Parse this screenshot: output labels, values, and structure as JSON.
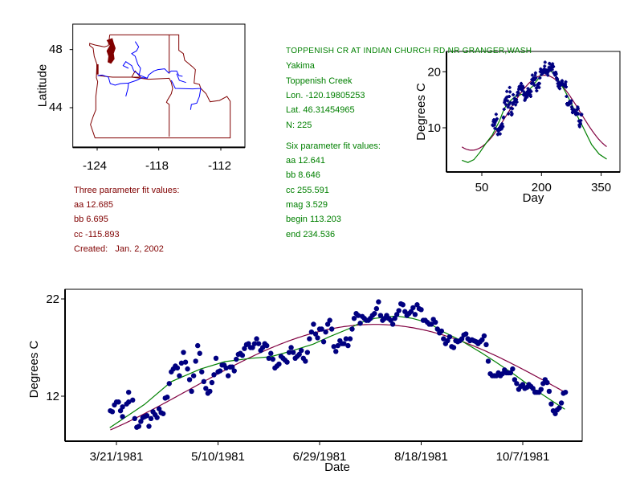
{
  "station": {
    "title": "TOPPENISH CR AT INDIAN CHURCH RD NR GRANGER,WASH",
    "basin": "Yakima",
    "stream": "Toppenish Creek",
    "lon": "Lon. -120.19805253",
    "lat": "Lat. 46.31454965",
    "n": "N: 225"
  },
  "six_fit": {
    "heading": "Six parameter fit values:",
    "aa": "aa 12.641",
    "bb": "bb 8.646",
    "cc": "cc 255.591",
    "mag": "mag 3.529",
    "begin": "begin 113.203",
    "end": "end 234.536"
  },
  "three_fit": {
    "heading": "Three parameter fit values:",
    "aa": "aa 12.685",
    "bb": "bb 6.695",
    "cc": "cc -115.893",
    "created": "Created:   Jan. 2, 2002"
  },
  "colors": {
    "points": "#000080",
    "three_fit": "#800040",
    "six_fit": "#008000",
    "border": "#800000",
    "river": "#0000ff"
  },
  "chart_data": [
    {
      "type": "map",
      "name": "location map",
      "xlabel": "",
      "ylabel": "Latitude",
      "xticks": [
        "-124",
        "-118",
        "-112"
      ],
      "yticks": [
        "48",
        "44"
      ]
    },
    {
      "type": "scatter",
      "name": "seasonal plot",
      "xlabel": "Day",
      "ylabel": "Degrees C",
      "xticks": [
        {
          "v": 50,
          "label": "50"
        },
        {
          "v": 200,
          "label": "200"
        },
        {
          "v": 350,
          "label": "350"
        }
      ],
      "yticks": [
        {
          "v": 10,
          "label": "10"
        },
        {
          "v": 20,
          "label": "20"
        }
      ],
      "xlim": [
        0,
        365
      ],
      "ylim": [
        2.1,
        23.6
      ]
    },
    {
      "type": "scatter",
      "name": "time series plot",
      "xlabel": "Date",
      "ylabel": "Degrees C",
      "x_unit": "day of year 1981",
      "xticks": [
        {
          "v": 80,
          "label": "3/21/1981"
        },
        {
          "v": 130,
          "label": "5/10/1981"
        },
        {
          "v": 180,
          "label": "6/29/1981"
        },
        {
          "v": 230,
          "label": "8/18/1981"
        },
        {
          "v": 280,
          "label": "10/7/1981"
        }
      ],
      "yticks": [
        {
          "v": 12,
          "label": "12"
        },
        {
          "v": 22,
          "label": "22"
        }
      ],
      "xlim": [
        54,
        309
      ],
      "ylim": [
        7.4,
        22.9
      ]
    }
  ],
  "series": {
    "observations": [
      [
        77,
        10.5
      ],
      [
        78,
        10.4
      ],
      [
        79,
        11.1
      ],
      [
        80,
        11.4
      ],
      [
        81,
        11.4
      ],
      [
        82,
        10.5
      ],
      [
        83,
        9.9
      ],
      [
        83,
        10.9
      ],
      [
        85,
        11.2
      ],
      [
        86,
        11.4
      ],
      [
        86,
        12.4
      ],
      [
        88,
        11.6
      ],
      [
        89,
        9.7
      ],
      [
        90,
        8.8
      ],
      [
        91,
        8.9
      ],
      [
        92,
        9.4
      ],
      [
        93,
        9.8
      ],
      [
        94,
        9.9
      ],
      [
        95,
        10.0
      ],
      [
        96,
        8.9
      ],
      [
        97,
        9.7
      ],
      [
        98,
        10.4
      ],
      [
        99,
        10.1
      ],
      [
        100,
        9.8
      ],
      [
        101,
        10.7
      ],
      [
        102,
        10.3
      ],
      [
        103,
        10.2
      ],
      [
        104,
        11.8
      ],
      [
        105,
        11.9
      ],
      [
        106,
        13.3
      ],
      [
        107,
        14.5
      ],
      [
        108,
        14.8
      ],
      [
        109,
        15.1
      ],
      [
        110,
        14.9
      ],
      [
        111,
        14.1
      ],
      [
        112,
        15.4
      ],
      [
        113,
        16.5
      ],
      [
        114,
        15.5
      ],
      [
        115,
        14.8
      ],
      [
        116,
        13.7
      ],
      [
        117,
        12.5
      ],
      [
        118,
        14.1
      ],
      [
        119,
        15.6
      ],
      [
        120,
        17.2
      ],
      [
        121,
        16.4
      ],
      [
        122,
        14.5
      ],
      [
        123,
        13.5
      ],
      [
        124,
        12.8
      ],
      [
        125,
        12.3
      ],
      [
        126,
        12.5
      ],
      [
        127,
        13.4
      ],
      [
        128,
        14.2
      ],
      [
        129,
        15.9
      ],
      [
        130,
        14.5
      ],
      [
        131,
        14.6
      ],
      [
        132,
        15.2
      ],
      [
        133,
        15.2
      ],
      [
        134,
        14.9
      ],
      [
        135,
        14.1
      ],
      [
        136,
        15.0
      ],
      [
        137,
        15.0
      ],
      [
        138,
        14.6
      ],
      [
        139,
        15.8
      ],
      [
        140,
        16.3
      ],
      [
        141,
        16.4
      ],
      [
        142,
        16.2
      ],
      [
        143,
        16.9
      ],
      [
        144,
        17.3
      ],
      [
        145,
        17.4
      ],
      [
        146,
        17.0
      ],
      [
        147,
        17.0
      ],
      [
        148,
        17.4
      ],
      [
        149,
        17.9
      ],
      [
        150,
        17.4
      ],
      [
        151,
        16.7
      ],
      [
        152,
        17.0
      ],
      [
        153,
        17.4
      ],
      [
        154,
        17.2
      ],
      [
        155,
        15.9
      ],
      [
        156,
        16.4
      ],
      [
        157,
        15.8
      ],
      [
        158,
        14.9
      ],
      [
        159,
        15.1
      ],
      [
        160,
        15.3
      ],
      [
        161,
        16.1
      ],
      [
        162,
        15.9
      ],
      [
        163,
        15.7
      ],
      [
        164,
        15.5
      ],
      [
        165,
        16.5
      ],
      [
        166,
        17.0
      ],
      [
        167,
        16.5
      ],
      [
        168,
        15.9
      ],
      [
        169,
        16.1
      ],
      [
        170,
        16.3
      ],
      [
        171,
        16.7
      ],
      [
        172,
        15.9
      ],
      [
        173,
        15.6
      ],
      [
        174,
        16.5
      ],
      [
        175,
        17.9
      ],
      [
        176,
        18.6
      ],
      [
        177,
        19.4
      ],
      [
        178,
        18.4
      ],
      [
        179,
        18.0
      ],
      [
        180,
        18.9
      ],
      [
        181,
        18.9
      ],
      [
        182,
        17.6
      ],
      [
        183,
        18.6
      ],
      [
        184,
        19.4
      ],
      [
        185,
        19.8
      ],
      [
        186,
        18.9
      ],
      [
        187,
        17.1
      ],
      [
        188,
        16.6
      ],
      [
        189,
        17.2
      ],
      [
        190,
        17.7
      ],
      [
        191,
        17.4
      ],
      [
        192,
        17.4
      ],
      [
        193,
        17.9
      ],
      [
        194,
        17.2
      ],
      [
        195,
        17.9
      ],
      [
        196,
        18.9
      ],
      [
        197,
        20.0
      ],
      [
        198,
        20.5
      ],
      [
        199,
        20.3
      ],
      [
        200,
        19.5
      ],
      [
        201,
        20.2
      ],
      [
        202,
        20.0
      ],
      [
        203,
        19.8
      ],
      [
        204,
        19.8
      ],
      [
        205,
        20.0
      ],
      [
        206,
        20.3
      ],
      [
        207,
        20.5
      ],
      [
        208,
        21.0
      ],
      [
        209,
        21.7
      ],
      [
        210,
        20.3
      ],
      [
        211,
        19.8
      ],
      [
        212,
        20.0
      ],
      [
        213,
        20.3
      ],
      [
        214,
        20.0
      ],
      [
        215,
        19.8
      ],
      [
        216,
        19.4
      ],
      [
        217,
        20.0
      ],
      [
        218,
        20.4
      ],
      [
        219,
        20.8
      ],
      [
        220,
        21.5
      ],
      [
        221,
        21.4
      ],
      [
        222,
        20.7
      ],
      [
        223,
        20.3
      ],
      [
        224,
        20.5
      ],
      [
        225,
        20.7
      ],
      [
        226,
        21.1
      ],
      [
        227,
        20.4
      ],
      [
        228,
        21.4
      ],
      [
        229,
        21.0
      ],
      [
        230,
        20.9
      ],
      [
        231,
        19.8
      ],
      [
        232,
        19.8
      ],
      [
        233,
        19.6
      ],
      [
        234,
        19.4
      ],
      [
        235,
        19.4
      ],
      [
        236,
        19.9
      ],
      [
        237,
        19.6
      ],
      [
        238,
        18.9
      ],
      [
        239,
        18.5
      ],
      [
        240,
        18.7
      ],
      [
        241,
        17.9
      ],
      [
        242,
        17.4
      ],
      [
        243,
        17.7
      ],
      [
        244,
        18.1
      ],
      [
        245,
        17.1
      ],
      [
        246,
        17.0
      ],
      [
        247,
        17.7
      ],
      [
        248,
        17.6
      ],
      [
        249,
        17.7
      ],
      [
        250,
        17.9
      ],
      [
        251,
        18.3
      ],
      [
        252,
        18.4
      ],
      [
        253,
        17.9
      ],
      [
        254,
        17.7
      ],
      [
        255,
        17.8
      ],
      [
        256,
        17.7
      ],
      [
        257,
        17.6
      ],
      [
        258,
        17.4
      ],
      [
        259,
        17.6
      ],
      [
        260,
        17.8
      ],
      [
        261,
        18.2
      ],
      [
        262,
        17.3
      ],
      [
        263,
        15.6
      ],
      [
        264,
        14.3
      ],
      [
        265,
        14.1
      ],
      [
        266,
        14.1
      ],
      [
        267,
        14.1
      ],
      [
        268,
        14.4
      ],
      [
        269,
        14.1
      ],
      [
        270,
        14.3
      ],
      [
        271,
        14.7
      ],
      [
        272,
        14.4
      ],
      [
        273,
        14.4
      ],
      [
        274,
        14.4
      ],
      [
        275,
        14.8
      ],
      [
        276,
        13.7
      ],
      [
        277,
        13.3
      ],
      [
        278,
        12.7
      ],
      [
        279,
        13.0
      ],
      [
        280,
        13.2
      ],
      [
        281,
        12.8
      ],
      [
        282,
        12.9
      ],
      [
        283,
        13.2
      ],
      [
        284,
        13.0
      ],
      [
        285,
        12.8
      ],
      [
        286,
        12.4
      ],
      [
        287,
        12.4
      ],
      [
        288,
        12.4
      ],
      [
        289,
        12.7
      ],
      [
        290,
        13.3
      ],
      [
        291,
        13.7
      ],
      [
        292,
        13.4
      ],
      [
        293,
        12.5
      ],
      [
        294,
        11.2
      ],
      [
        295,
        10.5
      ],
      [
        296,
        10.2
      ],
      [
        297,
        10.6
      ],
      [
        298,
        10.8
      ],
      [
        299,
        11.3
      ],
      [
        300,
        12.3
      ],
      [
        301,
        12.4
      ]
    ],
    "three_param_fit": {
      "aa": 12.685,
      "bb": 6.695,
      "cc": -115.893,
      "formula": "aa + bb*sin(2*pi*(day+cc)/365)"
    },
    "six_param_fit_curve": [
      [
        0,
        4.2
      ],
      [
        15,
        3.8
      ],
      [
        30,
        4.3
      ],
      [
        45,
        5.6
      ],
      [
        60,
        7.2
      ],
      [
        76.7,
        8.75
      ],
      [
        93.8,
        11.15
      ],
      [
        107,
        13.5
      ],
      [
        121.5,
        14.8
      ],
      [
        133.4,
        15.55
      ],
      [
        146.5,
        15.9
      ],
      [
        155.8,
        16.05
      ],
      [
        166.3,
        16.65
      ],
      [
        176.8,
        17.35
      ],
      [
        184.7,
        18.1
      ],
      [
        194,
        18.9
      ],
      [
        200.6,
        19.6
      ],
      [
        207.2,
        20.0
      ],
      [
        217.7,
        20.25
      ],
      [
        225.6,
        20.0
      ],
      [
        233.5,
        19.55
      ],
      [
        240.1,
        18.7
      ],
      [
        249.3,
        17.75
      ],
      [
        259.8,
        16.45
      ],
      [
        266.4,
        15.55
      ],
      [
        275.7,
        14.25
      ],
      [
        286.2,
        12.65
      ],
      [
        294.1,
        11.55
      ],
      [
        300.7,
        10.65
      ],
      [
        326,
        7.0
      ],
      [
        345,
        5.3
      ],
      [
        364,
        4.4
      ]
    ]
  },
  "axis_labels": {
    "map_y": "Latitude",
    "season_x": "Day",
    "season_y": "Degrees C",
    "ts_x": "Date",
    "ts_y": "Degrees C"
  }
}
